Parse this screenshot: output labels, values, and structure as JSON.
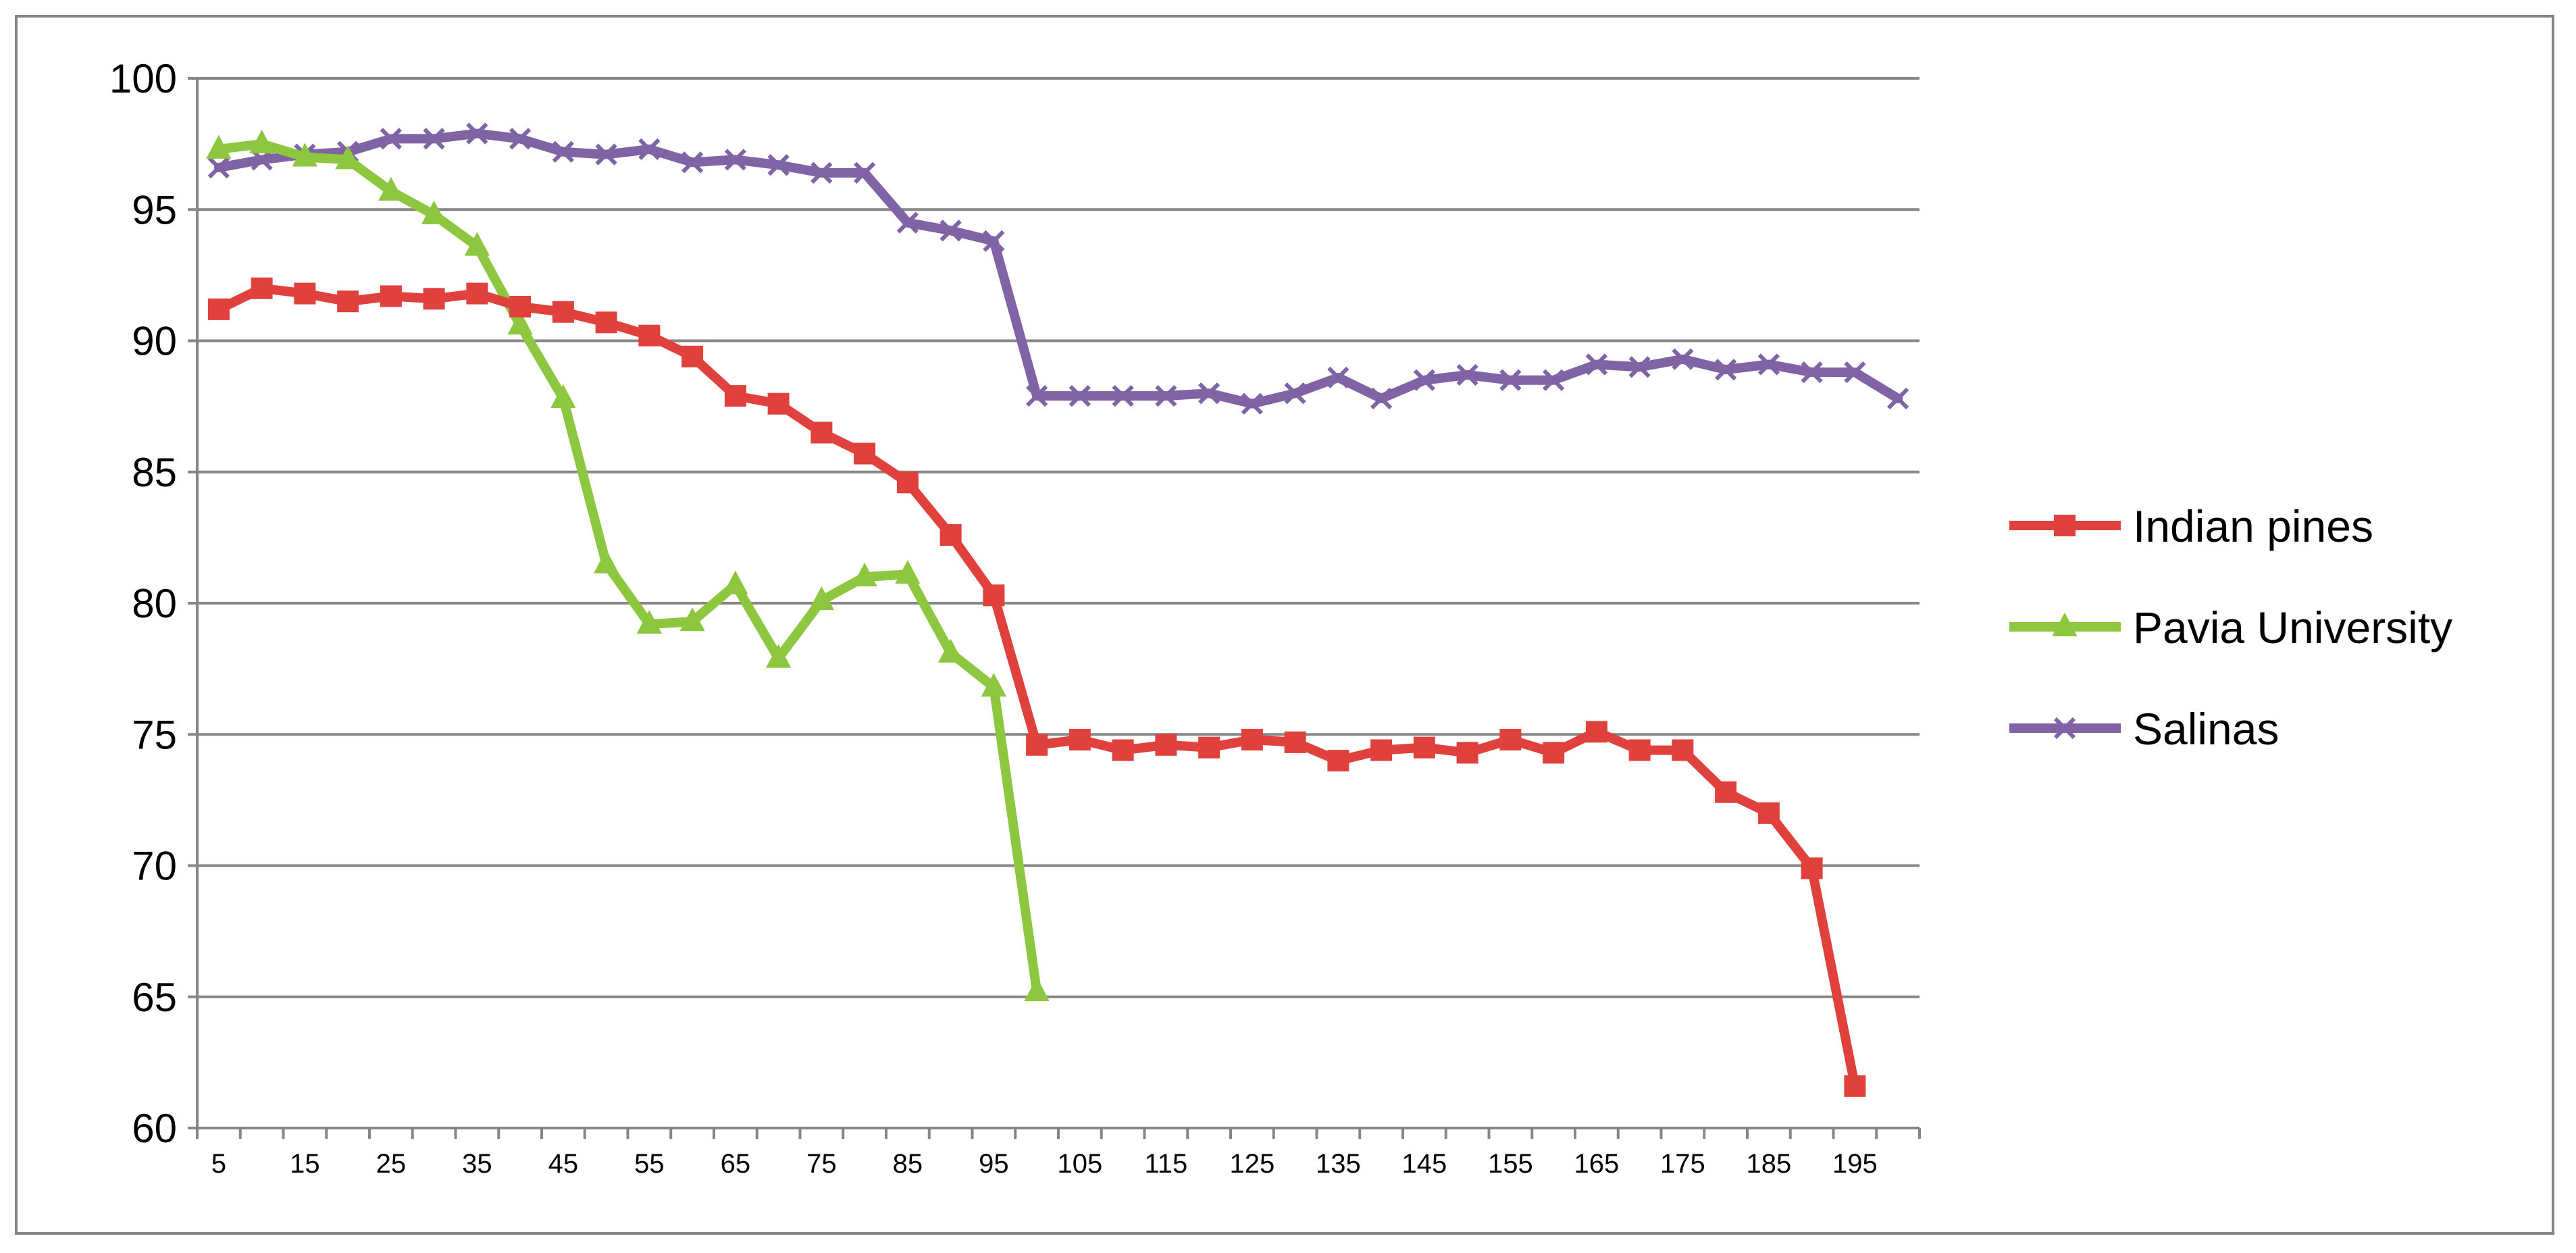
{
  "chart_data": {
    "type": "line",
    "title": "",
    "xlabel": "",
    "ylabel": "",
    "ylim": [
      60,
      100
    ],
    "yticks": [
      60,
      65,
      70,
      75,
      80,
      85,
      90,
      95,
      100
    ],
    "x_tick_labels": [
      "5",
      "15",
      "25",
      "35",
      "45",
      "55",
      "65",
      "75",
      "85",
      "95",
      "105",
      "115",
      "125",
      "135",
      "145",
      "155",
      "165",
      "175",
      "185",
      "195"
    ],
    "grid": "horizontal",
    "legend_position": "right",
    "series": [
      {
        "name": "Indian pines",
        "color": "#E0413D",
        "marker": "square",
        "x": [
          5,
          10,
          15,
          20,
          25,
          30,
          35,
          40,
          45,
          50,
          55,
          60,
          65,
          70,
          75,
          80,
          85,
          90,
          95,
          100,
          105,
          110,
          115,
          120,
          125,
          130,
          135,
          140,
          145,
          150,
          155,
          160,
          165,
          170,
          175,
          180,
          185,
          190,
          195
        ],
        "values": [
          91.2,
          92.0,
          91.8,
          91.5,
          91.7,
          91.6,
          91.8,
          91.3,
          91.1,
          90.7,
          90.2,
          89.4,
          87.9,
          87.6,
          86.5,
          85.7,
          84.6,
          82.6,
          80.3,
          74.6,
          74.8,
          74.4,
          74.6,
          74.5,
          74.8,
          74.7,
          74.0,
          74.4,
          74.5,
          74.3,
          74.8,
          74.3,
          75.1,
          74.4,
          74.4,
          72.8,
          72.0,
          69.9,
          61.6
        ]
      },
      {
        "name": "Pavia University",
        "color": "#8DC63F",
        "marker": "triangle",
        "x": [
          5,
          10,
          15,
          20,
          25,
          30,
          35,
          40,
          45,
          50,
          55,
          60,
          65,
          70,
          75,
          80,
          85,
          90,
          95,
          100
        ],
        "values": [
          97.3,
          97.5,
          97.0,
          96.9,
          95.7,
          94.8,
          93.6,
          90.6,
          87.8,
          81.5,
          79.2,
          79.3,
          80.7,
          77.9,
          80.1,
          81.0,
          81.1,
          78.1,
          76.8,
          65.2
        ]
      },
      {
        "name": "Salinas",
        "color": "#8063A4",
        "marker": "x",
        "x": [
          5,
          10,
          15,
          20,
          25,
          30,
          35,
          40,
          45,
          50,
          55,
          60,
          65,
          70,
          75,
          80,
          85,
          90,
          95,
          100,
          105,
          110,
          115,
          120,
          125,
          130,
          135,
          140,
          145,
          150,
          155,
          160,
          165,
          170,
          175,
          180,
          185,
          190,
          195,
          200
        ],
        "values": [
          96.6,
          96.9,
          97.1,
          97.2,
          97.7,
          97.7,
          97.9,
          97.7,
          97.2,
          97.1,
          97.3,
          96.8,
          96.9,
          96.7,
          96.4,
          96.4,
          94.5,
          94.2,
          93.8,
          87.9,
          87.9,
          87.9,
          87.9,
          88.0,
          87.6,
          88.0,
          88.6,
          87.8,
          88.5,
          88.7,
          88.5,
          88.5,
          89.1,
          89.0,
          89.3,
          88.9,
          89.1,
          88.8,
          88.8,
          87.8
        ]
      }
    ]
  }
}
